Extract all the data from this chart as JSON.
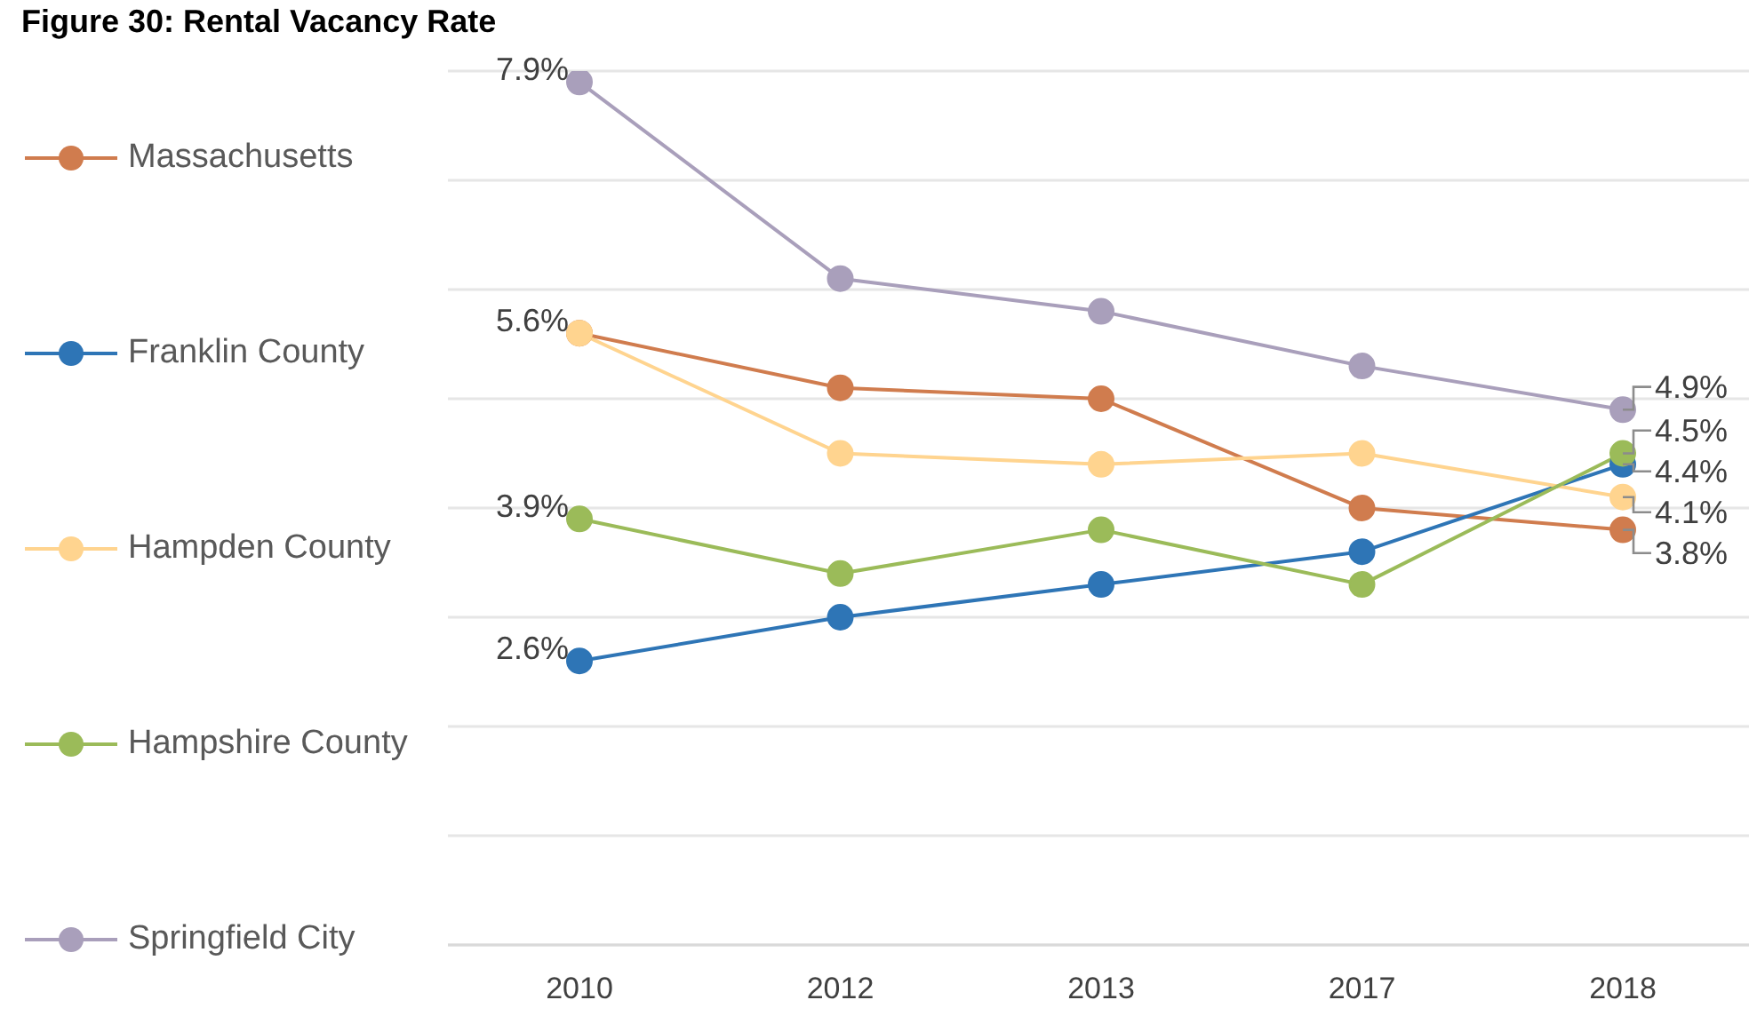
{
  "chart_data": {
    "type": "line",
    "title": "Figure 30: Rental Vacancy Rate",
    "categories": [
      "2010",
      "2012",
      "2013",
      "2017",
      "2018"
    ],
    "series": [
      {
        "name": "Massachusetts",
        "color": "#d07c4e",
        "values": [
          5.6,
          5.1,
          5.0,
          4.0,
          3.8
        ],
        "value_labels": [
          "5.6%",
          null,
          null,
          null,
          "3.8%"
        ]
      },
      {
        "name": "Franklin County",
        "color": "#2e75b6",
        "values": [
          2.6,
          3.0,
          3.3,
          3.6,
          4.4
        ],
        "value_labels": [
          "2.6%",
          null,
          null,
          null,
          "4.4%"
        ]
      },
      {
        "name": "Hampden County",
        "color": "#ffd48f",
        "values": [
          5.6,
          4.5,
          4.4,
          4.5,
          4.1
        ],
        "value_labels": [
          null,
          null,
          null,
          null,
          "4.1%"
        ]
      },
      {
        "name": "Hampshire County",
        "color": "#9bbb59",
        "values": [
          3.9,
          3.4,
          3.8,
          3.3,
          4.5
        ],
        "value_labels": [
          "3.9%",
          null,
          null,
          null,
          "4.5%"
        ]
      },
      {
        "name": "Springfield City",
        "color": "#a99fbb",
        "values": [
          7.9,
          6.1,
          5.8,
          5.3,
          4.9
        ],
        "value_labels": [
          "7.9%",
          null,
          null,
          null,
          "4.9%"
        ]
      }
    ],
    "ylim": [
      0,
      8
    ],
    "yticks": [
      {
        "value": 0,
        "label": null
      },
      {
        "value": 1,
        "label": null
      },
      {
        "value": 2,
        "label": null
      },
      {
        "value": 3,
        "label": null
      },
      {
        "value": 4,
        "label": null
      },
      {
        "value": 5,
        "label": null
      },
      {
        "value": 6,
        "label": null
      },
      {
        "value": 7,
        "label": null
      },
      {
        "value": 8,
        "label": null
      }
    ],
    "tick_labels": "x",
    "grid": "y",
    "legend": "left",
    "marker": "circle"
  }
}
